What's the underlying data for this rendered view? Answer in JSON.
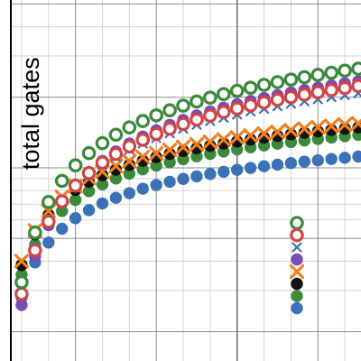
{
  "chart_data": {
    "type": "scatter",
    "title": "",
    "xlabel": "",
    "ylabel": "total gates",
    "grid": true,
    "minor_grid": true,
    "legend_position": "lower-right",
    "x_scale": "linear",
    "y_scale": "log",
    "xlim": [
      0.6,
      13.6
    ],
    "ylim": [
      150,
      5200
    ],
    "x": [
      1,
      1.5,
      2,
      2.5,
      3,
      3.5,
      4,
      4.5,
      5,
      5.5,
      6,
      6.5,
      7,
      7.5,
      8,
      8.5,
      9,
      9.5,
      10,
      10.5,
      11,
      11.5,
      12,
      12.5,
      13,
      13.5
    ],
    "series": [
      {
        "style": "filled-circle",
        "color": "#3a72b8",
        "values": [
          280,
          395,
          480,
          550,
          610,
          660,
          705,
          745,
          780,
          815,
          845,
          872,
          897,
          920,
          942,
          962,
          981,
          999,
          1016,
          1032,
          1048,
          1063,
          1077,
          1091,
          1104,
          1117
        ]
      },
      {
        "style": "filled-circle",
        "color": "#3a8a3a",
        "values": [
          350,
          470,
          570,
          655,
          730,
          795,
          850,
          900,
          945,
          985,
          1022,
          1057,
          1089,
          1119,
          1147,
          1174,
          1199,
          1223,
          1246,
          1268,
          1289,
          1309,
          1328,
          1347,
          1365,
          1382
        ]
      },
      {
        "style": "filled-circle",
        "color": "#111111",
        "values": [
          385,
          520,
          630,
          725,
          805,
          872,
          930,
          982,
          1029,
          1072,
          1111,
          1147,
          1181,
          1212,
          1242,
          1270,
          1296,
          1321,
          1345,
          1368,
          1390,
          1411,
          1431,
          1450,
          1469,
          1487
        ]
      },
      {
        "style": "x",
        "color": "#f07e20",
        "values": [
          400,
          540,
          655,
          752,
          835,
          905,
          965,
          1019,
          1068,
          1113,
          1154,
          1192,
          1227,
          1260,
          1291,
          1320,
          1348,
          1374,
          1399,
          1423,
          1446,
          1468,
          1489,
          1509,
          1528,
          1547
        ]
      },
      {
        "style": "filled-circle",
        "color": "#7a4bb0",
        "values": [
          260,
          420,
          570,
          710,
          840,
          960,
          1070,
          1175,
          1270,
          1360,
          1445,
          1525,
          1600,
          1672,
          1741,
          1806,
          1869,
          1929,
          1987,
          2043,
          2097,
          2149,
          2199,
          2248,
          2295,
          2341
        ]
      },
      {
        "style": "x-dotted",
        "color": "#3a72b8",
        "values": [
          325,
          460,
          600,
          720,
          835,
          935,
          1030,
          1115,
          1195,
          1270,
          1340,
          1405,
          1468,
          1527,
          1584,
          1638,
          1690,
          1740,
          1788,
          1834,
          1879,
          1922,
          1964,
          2004,
          2043,
          2081
        ]
      },
      {
        "style": "open-circle",
        "color": "#d04545",
        "values": [
          290,
          445,
          590,
          720,
          840,
          950,
          1052,
          1146,
          1234,
          1317,
          1395,
          1469,
          1539,
          1606,
          1670,
          1731,
          1790,
          1847,
          1901,
          1953,
          2004,
          2053,
          2100,
          2146,
          2190,
          2233
        ]
      },
      {
        "style": "open-circle",
        "color": "#3a8a3a",
        "values": [
          325,
          530,
          715,
          880,
          1025,
          1155,
          1275,
          1385,
          1488,
          1584,
          1675,
          1760,
          1842,
          1919,
          1993,
          2064,
          2132,
          2197,
          2260,
          2321,
          2380,
          2437,
          2492,
          2546,
          2598,
          2649
        ]
      }
    ]
  },
  "colors": {
    "grid_major": "#8c8c8c",
    "grid_minor": "#d4d4d4",
    "axis": "#000000",
    "blue": "#3a72b8",
    "green": "#3a8a3a",
    "black": "#111111",
    "orange": "#f07e20",
    "purple": "#7a4bb0",
    "red": "#d04545"
  }
}
